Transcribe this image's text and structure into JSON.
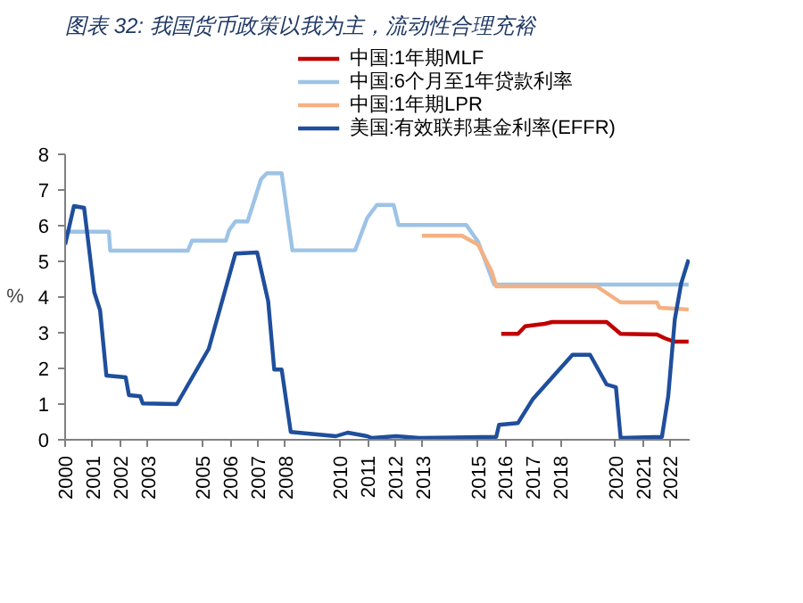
{
  "chart_data": {
    "type": "line",
    "title": "图表 32: 我国货币政策以我为主，流动性合理充裕",
    "ylabel": "%",
    "xlim": [
      2000,
      2022.7
    ],
    "xticks": [
      2000,
      2001,
      2002,
      2003,
      2005,
      2006,
      2007,
      2008,
      2010,
      2011,
      2012,
      2013,
      2015,
      2016,
      2017,
      2018,
      2020,
      2021,
      2022
    ],
    "ylim": [
      0,
      8
    ],
    "yticks": [
      0,
      1,
      2,
      3,
      4,
      5,
      6,
      7,
      8
    ],
    "grid": false,
    "legend": "top",
    "line_style": "solid",
    "series": [
      {
        "name": "中国:1年期MLF",
        "color": "#c00000",
        "x": [
          2015.85,
          2016.46,
          2016.72,
          2017.43,
          2017.7,
          2019.68,
          2020.19,
          2021.51,
          2021.78,
          2022.13,
          2022.66
        ],
        "values": [
          2.97,
          2.97,
          3.18,
          3.25,
          3.3,
          3.3,
          2.97,
          2.95,
          2.85,
          2.75,
          2.75
        ]
      },
      {
        "name": "中国:6个月至1年贷款利率",
        "color": "#9dc3e6",
        "x": [
          2000,
          2001.59,
          2001.64,
          2004.46,
          2004.61,
          2005.84,
          2005.96,
          2006.19,
          2006.63,
          2006.81,
          2007.12,
          2007.33,
          2007.87,
          2008.26,
          2010.54,
          2010.98,
          2011.33,
          2011.94,
          2012.12,
          2014.58,
          2015.01,
          2015.59,
          2022.66
        ],
        "values": [
          5.83,
          5.83,
          5.3,
          5.3,
          5.58,
          5.58,
          5.87,
          6.12,
          6.12,
          6.55,
          7.3,
          7.47,
          7.47,
          5.31,
          5.31,
          6.22,
          6.58,
          6.58,
          6.02,
          6.02,
          5.55,
          4.35,
          4.35
        ]
      },
      {
        "name": "中国:1年期LPR",
        "color": "#f4b183",
        "x": [
          2012.97,
          2014.42,
          2015.01,
          2015.5,
          2015.67,
          2019.32,
          2020.19,
          2021.51,
          2021.6,
          2022.66
        ],
        "values": [
          5.72,
          5.72,
          5.47,
          4.72,
          4.3,
          4.3,
          3.85,
          3.85,
          3.7,
          3.65
        ]
      },
      {
        "name": "美国:有效联邦基金利率(EFFR)",
        "color": "#1f4e9c",
        "x": [
          2000,
          2000.32,
          2000.69,
          2000.84,
          2001.06,
          2001.27,
          2001.5,
          2002.2,
          2002.32,
          2002.73,
          2002.82,
          2004.06,
          2005.22,
          2006.19,
          2006.98,
          2007.38,
          2007.6,
          2007.87,
          2008.2,
          2009.84,
          2010.27,
          2010.98,
          2011.15,
          2012.03,
          2012.88,
          2015.67,
          2015.77,
          2016.46,
          2016.99,
          2017.96,
          2018.44,
          2019.08,
          2019.68,
          2020.02,
          2020.19,
          2021.69,
          2021.92,
          2022.16,
          2022.39,
          2022.66
        ],
        "values": [
          5.47,
          6.55,
          6.5,
          5.55,
          4.13,
          3.63,
          1.8,
          1.75,
          1.25,
          1.22,
          1.02,
          1.0,
          2.55,
          5.22,
          5.25,
          3.88,
          1.97,
          1.97,
          0.22,
          0.1,
          0.2,
          0.1,
          0.05,
          0.1,
          0.05,
          0.08,
          0.42,
          0.47,
          1.13,
          1.97,
          2.38,
          2.38,
          1.55,
          1.47,
          0.05,
          0.08,
          1.22,
          3.38,
          4.38,
          5.05
        ]
      }
    ]
  }
}
